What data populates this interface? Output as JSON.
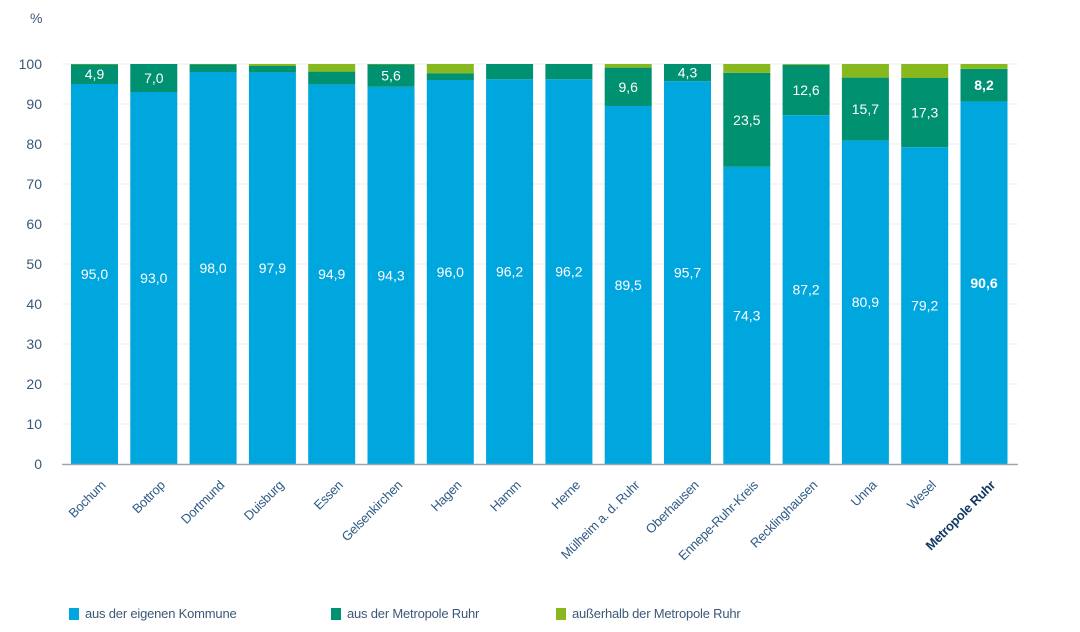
{
  "chart_data": {
    "type": "bar",
    "stacked": true,
    "title": "",
    "ylabel": "%",
    "xlabel": "",
    "ylim": [
      0,
      100
    ],
    "yticks": [
      0,
      10,
      20,
      30,
      40,
      50,
      60,
      70,
      80,
      90,
      100
    ],
    "grid": true,
    "legend_position": "bottom-left",
    "categories": [
      "Bochum",
      "Bottrop",
      "Dortmund",
      "Duisburg",
      "Essen",
      "Gelsenkirchen",
      "Hagen",
      "Hamm",
      "Herne",
      "Mülheim a. d. Ruhr",
      "Oberhausen",
      "Ennepe-Ruhr-Kreis",
      "Recklinghausen",
      "Unna",
      "Wesel",
      "Metropole Ruhr"
    ],
    "highlight_category": "Metropole Ruhr",
    "series": [
      {
        "name": "aus der eigenen Kommune",
        "color": "#00a7de",
        "values": [
          95.0,
          93.0,
          98.0,
          97.9,
          94.9,
          94.3,
          96.0,
          96.2,
          96.2,
          89.5,
          95.7,
          74.3,
          87.2,
          80.9,
          79.2,
          90.6
        ],
        "labels": [
          "95,0",
          "93,0",
          "98,0",
          "97,9",
          "94,9",
          "94,3",
          "96,0",
          "96,2",
          "96,2",
          "89,5",
          "95,7",
          "74,3",
          "87,2",
          "80,9",
          "79,2",
          "90,6"
        ]
      },
      {
        "name": "aus der Metropole Ruhr",
        "color": "#009170",
        "values": [
          4.9,
          7.0,
          1.9,
          1.6,
          3.2,
          5.6,
          1.7,
          3.8,
          3.8,
          9.6,
          4.3,
          23.5,
          12.6,
          15.7,
          17.3,
          8.2
        ],
        "labels": [
          "4,9",
          "7,0",
          "",
          "",
          "",
          "5,6",
          "",
          "",
          "",
          "9,6",
          "4,3",
          "23,5",
          "12,6",
          "15,7",
          "17,3",
          "8,2"
        ]
      },
      {
        "name": "außerhalb der Metropole Ruhr",
        "color": "#87b91e",
        "values": [
          0.1,
          0.0,
          0.1,
          0.5,
          1.9,
          0.1,
          2.3,
          0.0,
          0.0,
          0.9,
          0.0,
          2.2,
          0.2,
          3.4,
          3.5,
          1.2
        ],
        "labels": [
          "",
          "",
          "",
          "",
          "",
          "",
          "",
          "",
          "",
          "",
          "",
          "",
          "",
          "",
          "",
          ""
        ]
      }
    ]
  },
  "legend": {
    "items": [
      {
        "label": "aus der eigenen Kommune",
        "color": "#00a7de"
      },
      {
        "label": "aus der Metropole Ruhr",
        "color": "#009170"
      },
      {
        "label": "außerhalb der Metropole Ruhr",
        "color": "#87b91e"
      }
    ]
  }
}
